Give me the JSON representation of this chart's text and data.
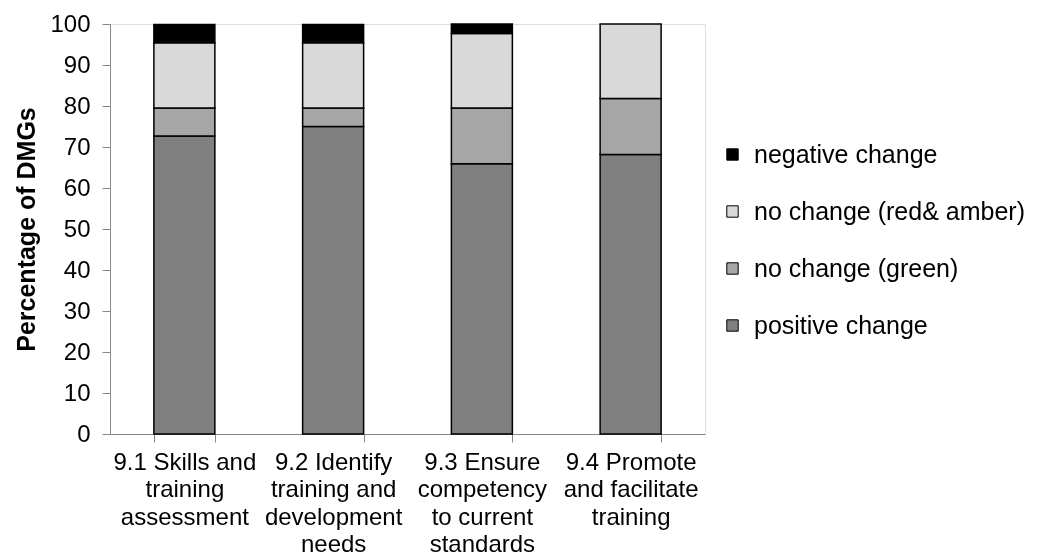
{
  "chart_data": {
    "type": "bar",
    "stacked": true,
    "ylabel": "Percentage of DMGs",
    "categories": [
      "9.1 Skills and training assessment",
      "9.2 Identify training and development needs",
      "9.3 Ensure competency to current standards",
      "9.4 Promote and facilitate training"
    ],
    "series": [
      {
        "name": "positive change",
        "color": "#808080",
        "values": [
          72.7,
          75.0,
          65.9,
          68.2
        ]
      },
      {
        "name": "no change (green)",
        "color": "#a6a6a6",
        "values": [
          6.8,
          4.5,
          13.6,
          13.6
        ]
      },
      {
        "name": "no change (red& amber)",
        "color": "#d9d9d9",
        "values": [
          15.9,
          15.9,
          18.2,
          18.2
        ]
      },
      {
        "name": "negative change",
        "color": "#000000",
        "values": [
          4.5,
          4.5,
          2.3,
          0
        ]
      }
    ],
    "ylim": [
      0,
      100
    ],
    "yticks": [
      0,
      10,
      20,
      30,
      40,
      50,
      60,
      70,
      80,
      90,
      100
    ],
    "grid": false,
    "legend": "right"
  }
}
